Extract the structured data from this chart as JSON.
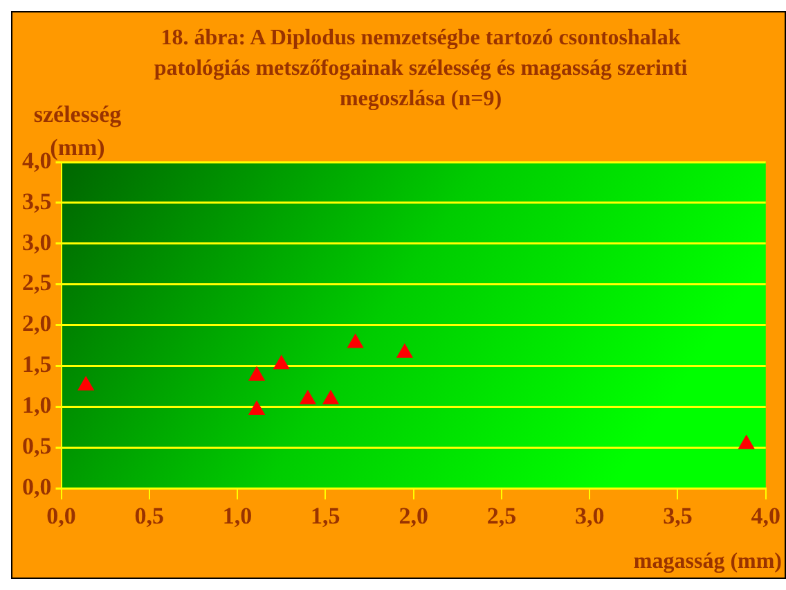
{
  "chart_data": {
    "type": "scatter",
    "title": "18. ábra: A Diplodus nemzetségbe tartozó csontoshalak patológiás metszőfogainak szélesség és magasság szerinti megoszlása (n=9)",
    "xlabel": "magasság (mm)",
    "ylabel": "szélesség (mm)",
    "series": [
      {
        "color": "#ff0000",
        "x": [
          0.14,
          1.11,
          1.11,
          1.25,
          1.4,
          1.53,
          1.67,
          1.95,
          3.89
        ],
        "values": [
          1.26,
          1.38,
          0.96,
          1.52,
          1.09,
          1.09,
          1.78,
          1.66,
          0.54
        ]
      }
    ],
    "xlim": [
      0,
      4
    ],
    "xticks": [
      {
        "value": 0,
        "label": "0,0"
      },
      {
        "value": 0.5,
        "label": "0,5"
      },
      {
        "value": 1,
        "label": "1,0"
      },
      {
        "value": 1.5,
        "label": "1,5"
      },
      {
        "value": 2,
        "label": "2,0"
      },
      {
        "value": 2.5,
        "label": "2,5"
      },
      {
        "value": 3,
        "label": "3,0"
      },
      {
        "value": 3.5,
        "label": "3,5"
      },
      {
        "value": 4,
        "label": "4,0"
      }
    ],
    "ylim": [
      0,
      4
    ],
    "yticks": [
      {
        "value": 0,
        "label": "0,0"
      },
      {
        "value": 0.5,
        "label": "0,5"
      },
      {
        "value": 1,
        "label": "1,0"
      },
      {
        "value": 1.5,
        "label": "1,5"
      },
      {
        "value": 2,
        "label": "2,0"
      },
      {
        "value": 2.5,
        "label": "2,5"
      },
      {
        "value": 3,
        "label": "3,0"
      },
      {
        "value": 3.5,
        "label": "3,5"
      },
      {
        "value": 4,
        "label": "4,0"
      }
    ],
    "grid": "y",
    "legend": false,
    "marker": "triangle"
  }
}
